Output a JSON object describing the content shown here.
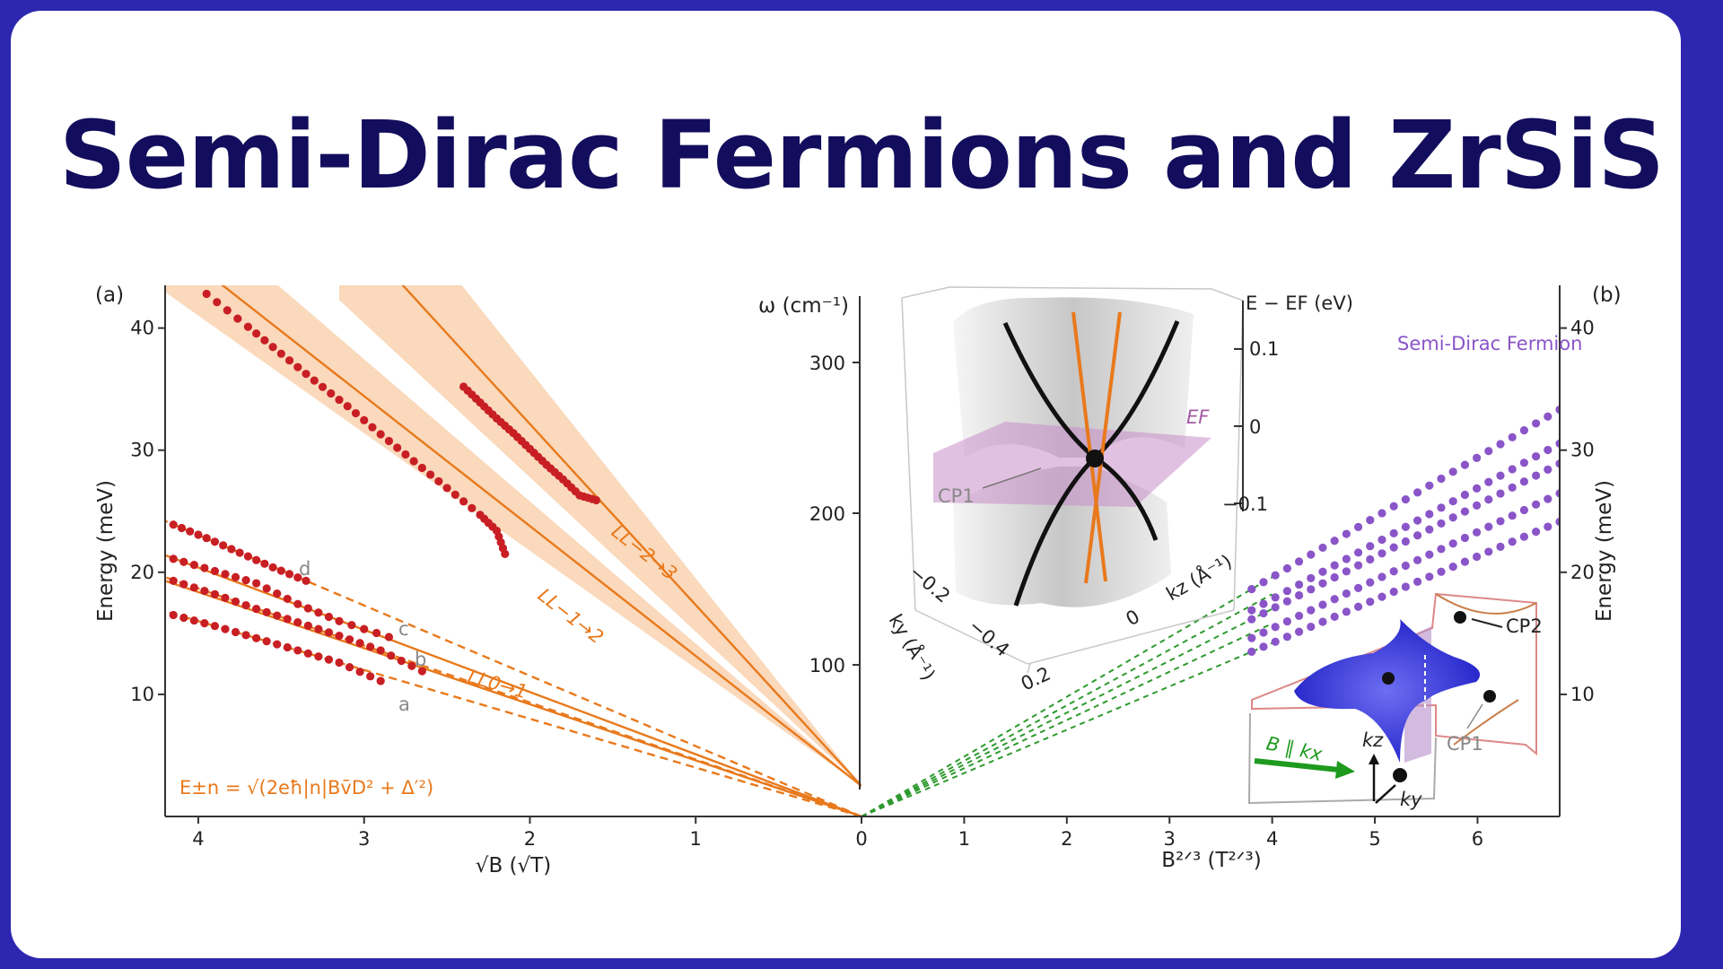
{
  "title": "Semi-Dirac Fermions and ZrSiS",
  "colors": {
    "background": "#2d27b0",
    "title": "#120d5c",
    "fit_line": "#e8791c",
    "band": "#f8c9a0",
    "data_red": "#c81f24",
    "data_purple": "#8a55c8",
    "green_dash": "#2e9a2e"
  },
  "chart_data": [
    {
      "type": "line",
      "panel": "(a)",
      "xlabel": "√B (√T)",
      "ylabel": "Energy (meV)",
      "xlim": [
        4.2,
        0
      ],
      "ylim": [
        0,
        43.5
      ],
      "xticks": [
        "4",
        "3",
        "2",
        "1"
      ],
      "yticks": [
        "10",
        "20",
        "30",
        "40"
      ],
      "formula": "E±n = √(2eħ|n|Bv̄D² + Δ′²)",
      "lines": [
        {
          "name": "LL−2→3",
          "label_text": "LL−2→3",
          "style": "solid",
          "x": [
            0,
            2.8
          ],
          "y": [
            2.5,
            44
          ]
        },
        {
          "name": "LL−1→2",
          "label_text": "LL−1→2",
          "style": "solid",
          "x": [
            0,
            3.9
          ],
          "y": [
            2.5,
            44
          ]
        },
        {
          "name": "LL0→1",
          "label_text": "LL0→1",
          "style": "solid",
          "x": [
            0,
            4.2
          ],
          "y": [
            0,
            19.3
          ]
        },
        {
          "name": "a",
          "label_text": "a",
          "style": "dashed",
          "x": [
            0,
            4.2
          ],
          "y": [
            0,
            16.8
          ]
        },
        {
          "name": "b",
          "label_text": "b",
          "style": "dashed",
          "x": [
            0,
            4.2
          ],
          "y": [
            0,
            19.6
          ]
        },
        {
          "name": "c",
          "label_text": "c",
          "style": "solid",
          "x": [
            0,
            4.2
          ],
          "y": [
            0,
            21.4
          ]
        },
        {
          "name": "d",
          "label_text": "d",
          "style": "dashed",
          "x": [
            0,
            4.2
          ],
          "y": [
            0,
            24.2
          ]
        }
      ],
      "points": [
        {
          "series": "LL−1→2 data",
          "x": [
            3.95,
            3.7,
            3.5,
            3.3,
            3.1,
            2.9,
            2.7,
            2.5,
            2.3,
            2.2,
            2.15
          ],
          "y": [
            42.8,
            40.1,
            37.9,
            35.7,
            33.6,
            31.3,
            29.1,
            26.9,
            24.7,
            23.4,
            21.5
          ]
        },
        {
          "series": "LL−2→3 data",
          "x": [
            2.4,
            2.3,
            2.2,
            2.1,
            2.0,
            1.9,
            1.8,
            1.7,
            1.6
          ],
          "y": [
            35.2,
            33.9,
            32.6,
            31.4,
            30.1,
            28.8,
            27.6,
            26.3,
            25.9
          ]
        },
        {
          "series": "d",
          "x": [
            4.15,
            3.95,
            3.75,
            3.55,
            3.35
          ],
          "y": [
            23.9,
            22.8,
            21.6,
            20.4,
            19.3
          ]
        },
        {
          "series": "c",
          "x": [
            4.15,
            3.9,
            3.65,
            3.4,
            3.15,
            2.85
          ],
          "y": [
            21.1,
            20.1,
            19.1,
            17.4,
            16.0,
            14.7
          ]
        },
        {
          "series": "b",
          "x": [
            4.15,
            3.9,
            3.65,
            3.4,
            3.15,
            2.9,
            2.65
          ],
          "y": [
            19.3,
            18.2,
            17.0,
            15.9,
            14.8,
            13.6,
            11.9
          ]
        },
        {
          "series": "a",
          "x": [
            4.15,
            3.9,
            3.65,
            3.4,
            3.15,
            2.9
          ],
          "y": [
            16.5,
            15.6,
            14.6,
            13.6,
            12.6,
            11.1
          ]
        }
      ]
    },
    {
      "type": "scatter",
      "panel": "(b)",
      "xlabel": "B²ᐟ³ (T²ᐟ³)",
      "ylabel": "Energy (meV)",
      "xlim": [
        0,
        6.8
      ],
      "ylim": [
        0,
        43.5
      ],
      "xticks": [
        "0",
        "1",
        "2",
        "3",
        "4",
        "5",
        "6"
      ],
      "yticks": [
        "10",
        "20",
        "30",
        "40"
      ],
      "legend": "Semi-Dirac Fermion",
      "series": [
        {
          "slope": 4.9,
          "x_from": 3.8,
          "x_to": 6.8
        },
        {
          "slope": 4.55,
          "x_from": 3.8,
          "x_to": 6.8
        },
        {
          "slope": 4.25,
          "x_from": 3.8,
          "x_to": 6.8
        },
        {
          "slope": 3.95,
          "x_from": 3.8,
          "x_to": 6.8
        },
        {
          "slope": 3.55,
          "x_from": 3.8,
          "x_to": 6.8
        }
      ]
    },
    {
      "type": "diagram",
      "panel": "inset",
      "left_axis_label": "ω (cm⁻¹)",
      "left_ticks": [
        "300",
        "200",
        "100"
      ],
      "right_axis_label": "E − EF (eV)",
      "right_ticks": [
        "0.1",
        "0",
        "−0.1"
      ],
      "kz_label": "kz (Å⁻¹)",
      "ky_label": "ky (Å⁻¹)",
      "ky_ticks": [
        "−0.2",
        "−0.4",
        "0.2"
      ],
      "kz_tick": "0",
      "ef_label": "EF",
      "cp1_label": "CP1"
    }
  ],
  "inset_bz": {
    "field_label": "B ∥ kx",
    "kz": "kz",
    "ky": "ky",
    "cp1": "CP1",
    "cp2": "CP2"
  }
}
